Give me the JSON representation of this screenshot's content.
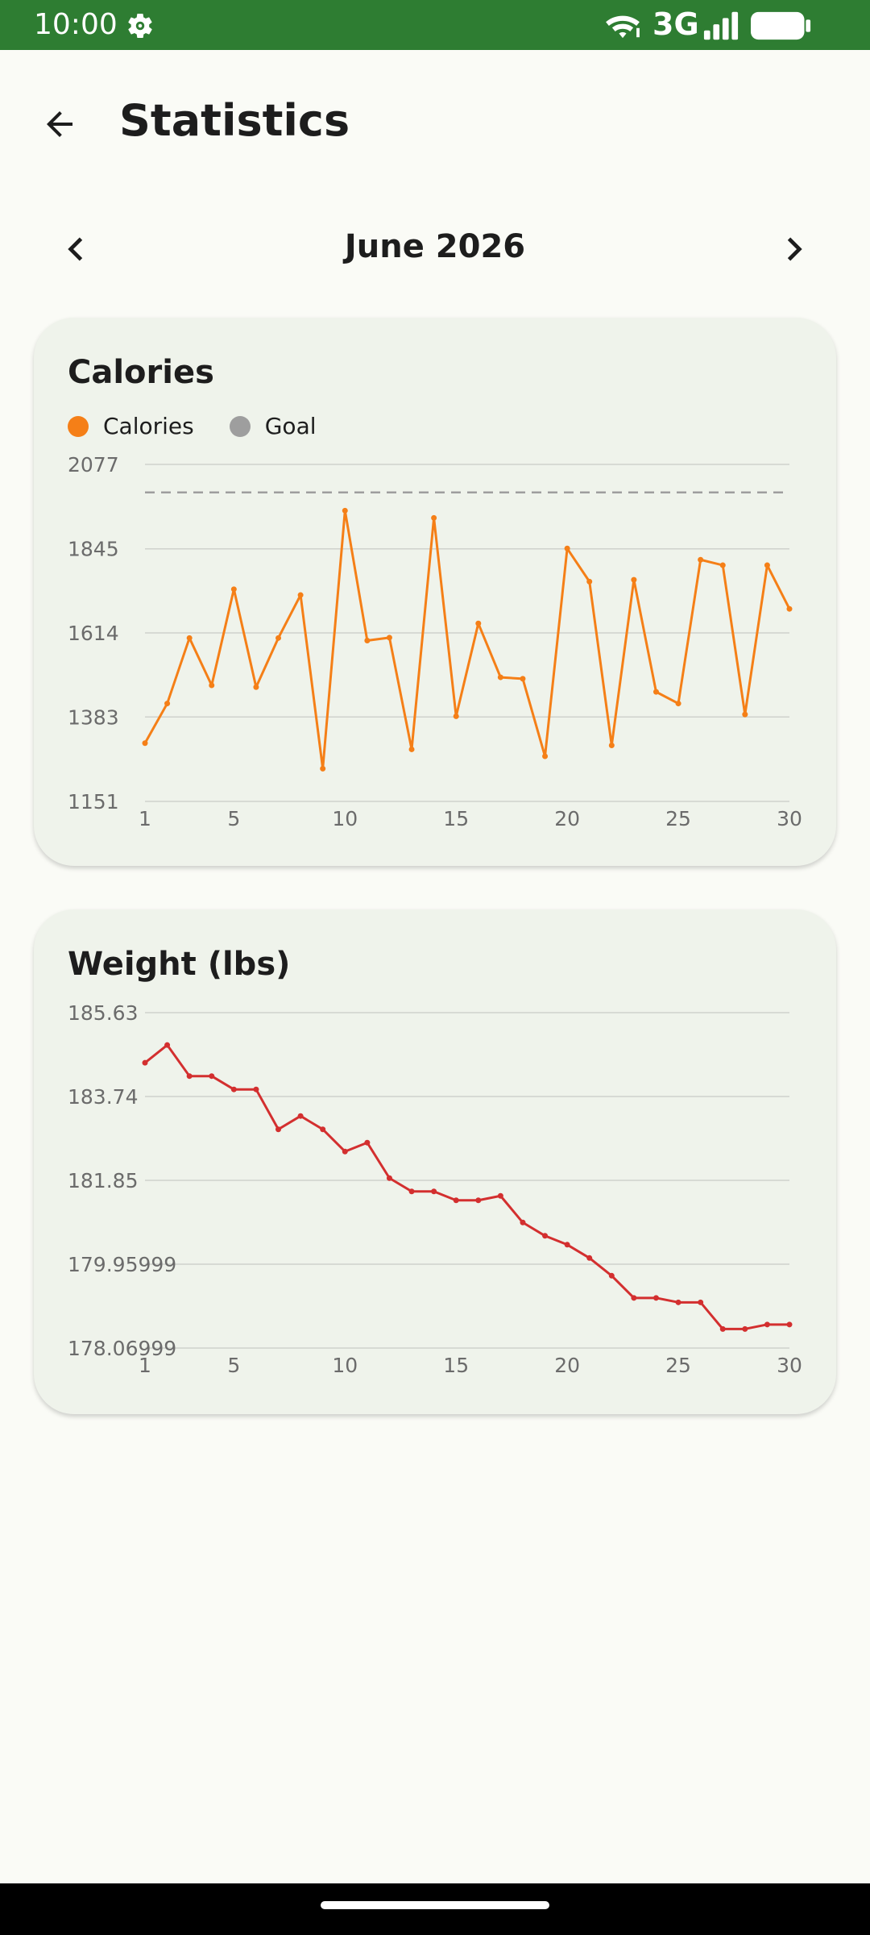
{
  "status_bar": {
    "time": "10:00",
    "network": "3G",
    "icons": [
      "settings-icon",
      "wifi-icon",
      "signal-icon",
      "battery-icon"
    ],
    "background": "#2E7D32"
  },
  "app_bar": {
    "title": "Statistics",
    "back_icon": "arrow-back-icon"
  },
  "month_nav": {
    "label": "June 2026",
    "prev_icon": "chevron-left-icon",
    "next_icon": "chevron-right-icon"
  },
  "calories_card": {
    "title": "Calories",
    "legend": [
      {
        "label": "Calories",
        "color": "#F57F17"
      },
      {
        "label": "Goal",
        "color": "#9E9E9E"
      }
    ]
  },
  "weight_card": {
    "title": "Weight (lbs)"
  },
  "chart_data": [
    {
      "type": "line",
      "title": "Calories",
      "x_tick_labels": [
        "1",
        "5",
        "10",
        "15",
        "20",
        "25",
        "30"
      ],
      "y_tick_labels": [
        "2077",
        "1845",
        "1614",
        "1383",
        "1151"
      ],
      "ylim": [
        1151,
        2077
      ],
      "xlim": [
        1,
        30
      ],
      "grid": true,
      "legend": "top-left",
      "goal": 2000,
      "series": [
        {
          "name": "Calories",
          "color": "#F57F17",
          "x": [
            1,
            2,
            3,
            4,
            5,
            6,
            7,
            8,
            9,
            10,
            11,
            12,
            13,
            14,
            15,
            16,
            17,
            18,
            19,
            20,
            21,
            22,
            23,
            24,
            25,
            26,
            27,
            28,
            29,
            30
          ],
          "values": [
            1311,
            1420,
            1600,
            1470,
            1734,
            1465,
            1600,
            1718,
            1241,
            1950,
            1593,
            1601,
            1294,
            1930,
            1385,
            1640,
            1492,
            1488,
            1275,
            1846,
            1755,
            1305,
            1760,
            1452,
            1420,
            1815,
            1800,
            1390,
            1800,
            1680
          ]
        },
        {
          "name": "Goal",
          "color": "#9E9E9E",
          "style": "dashed",
          "x": [
            1,
            30
          ],
          "values": [
            2000,
            2000
          ]
        }
      ]
    },
    {
      "type": "line",
      "title": "Weight (lbs)",
      "x_tick_labels": [
        "1",
        "5",
        "10",
        "15",
        "20",
        "25",
        "30"
      ],
      "y_tick_labels": [
        "185.63",
        "183.74",
        "181.85",
        "179.95999",
        "178.06999"
      ],
      "ylim": [
        178.06999,
        185.63
      ],
      "xlim": [
        1,
        30
      ],
      "grid": true,
      "series": [
        {
          "color": "#D32F2F",
          "x": [
            1,
            2,
            3,
            4,
            5,
            6,
            7,
            8,
            9,
            10,
            11,
            12,
            13,
            14,
            15,
            16,
            17,
            18,
            19,
            20,
            21,
            22,
            23,
            24,
            25,
            26,
            27,
            28,
            29,
            30
          ],
          "values": [
            184.5,
            184.9,
            184.2,
            184.2,
            183.9,
            183.9,
            183.0,
            183.3,
            183.0,
            182.5,
            182.7,
            181.9,
            181.6,
            181.6,
            181.4,
            181.4,
            181.5,
            180.9,
            180.6,
            180.4,
            180.1,
            179.7,
            179.2,
            179.2,
            179.1,
            179.1,
            178.5,
            178.5,
            178.6,
            178.6
          ]
        }
      ]
    }
  ]
}
